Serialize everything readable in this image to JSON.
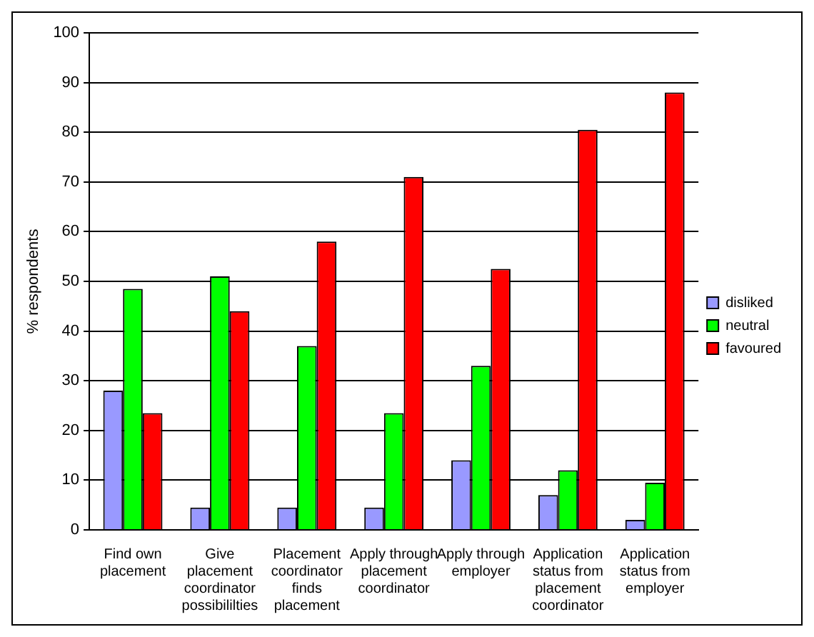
{
  "chart_data": {
    "type": "bar",
    "ylabel": "% respondents",
    "categories": [
      "Find own placement",
      "Give placement coordinator possibililties",
      "Placement coordinator finds placement",
      "Apply through placement coordinator",
      "Apply through employer",
      "Application status from placement coordinator",
      "Application status from employer"
    ],
    "series": [
      {
        "name": "disliked",
        "color": "#9999ff",
        "values": [
          28,
          4.5,
          4.5,
          4.5,
          14,
          7,
          2
        ]
      },
      {
        "name": "neutral",
        "color": "#00ff00",
        "values": [
          48.5,
          51,
          37,
          23.5,
          33,
          12,
          9.5
        ]
      },
      {
        "name": "favoured",
        "color": "#ff0000",
        "values": [
          23.5,
          44,
          58,
          71,
          52.5,
          80.5,
          88
        ]
      }
    ],
    "ylim": [
      0,
      100
    ],
    "yticks": [
      0,
      10,
      20,
      30,
      40,
      50,
      60,
      70,
      80,
      90,
      100
    ],
    "grid": "y",
    "legend": "right"
  }
}
